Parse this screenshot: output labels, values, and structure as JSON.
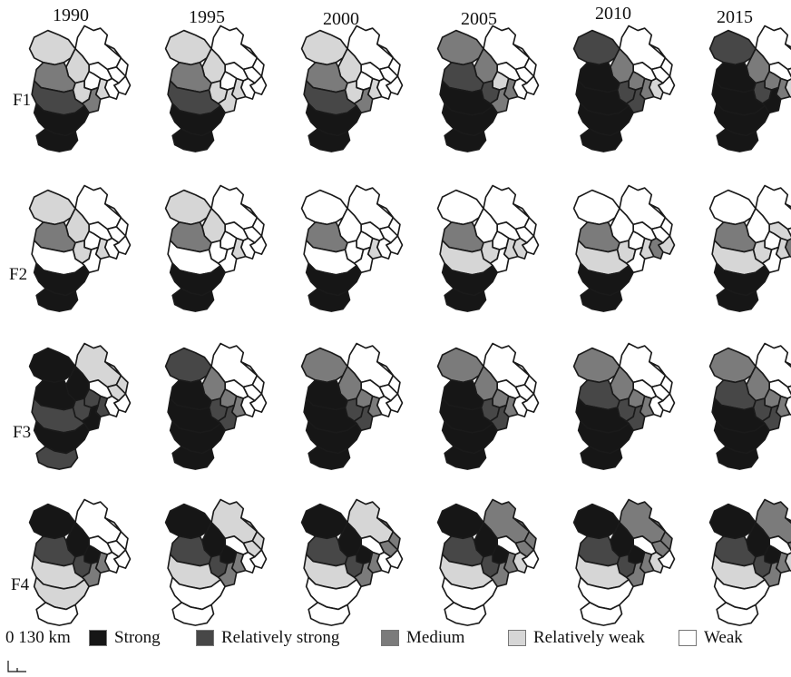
{
  "years": [
    "1990",
    "1995",
    "2000",
    "2005",
    "2010",
    "2015"
  ],
  "factors": [
    "F1",
    "F2",
    "F3",
    "F4"
  ],
  "scale": {
    "label": "0 130 km"
  },
  "legend": [
    {
      "label": "Strong",
      "color": "#161616"
    },
    {
      "label": "Relatively strong",
      "color": "#474747"
    },
    {
      "label": "Medium",
      "color": "#7b7b7b"
    },
    {
      "label": "Relatively weak",
      "color": "#d6d6d6"
    },
    {
      "label": "Weak",
      "color": "#ffffff"
    }
  ],
  "levels": [
    "Weak",
    "Relatively weak",
    "Medium",
    "Relatively strong",
    "Strong"
  ],
  "maps": [
    [
      [
        "Weak",
        "Weak",
        "Weak",
        "Weak",
        "Weak",
        "Relatively weak",
        "Relatively weak",
        "Weak",
        "Relatively weak",
        "Relatively weak",
        "Medium",
        "Medium",
        "Relatively strong",
        "Strong",
        "Strong"
      ],
      [
        "Weak",
        "Weak",
        "Weak",
        "Weak",
        "Weak",
        "Relatively weak",
        "Relatively weak",
        "Weak",
        "Relatively weak",
        "Relatively weak",
        "Medium",
        "Relatively weak",
        "Relatively strong",
        "Strong",
        "Strong"
      ],
      [
        "Weak",
        "Weak",
        "Weak",
        "Weak",
        "Weak",
        "Relatively weak",
        "Relatively weak",
        "Weak",
        "Relatively weak",
        "Relatively weak",
        "Medium",
        "Medium",
        "Relatively strong",
        "Strong",
        "Strong"
      ],
      [
        "Weak",
        "Weak",
        "Weak",
        "Weak",
        "Weak",
        "Medium",
        "Medium",
        "Relatively weak",
        "Medium",
        "Relatively strong",
        "Relatively strong",
        "Medium",
        "Strong",
        "Strong",
        "Strong"
      ],
      [
        "Weak",
        "Weak",
        "Weak",
        "Relatively weak",
        "Weak",
        "Relatively strong",
        "Medium",
        "Medium",
        "Medium",
        "Relatively strong",
        "Strong",
        "Relatively strong",
        "Strong",
        "Strong",
        "Strong"
      ],
      [
        "Weak",
        "Weak",
        "Weak",
        "Relatively weak",
        "Weak",
        "Relatively strong",
        "Medium",
        "Medium",
        "Medium",
        "Relatively strong",
        "Strong",
        "Strong",
        "Strong",
        "Strong",
        "Strong"
      ]
    ],
    [
      [
        "Weak",
        "Weak",
        "Weak",
        "Weak",
        "Weak",
        "Relatively weak",
        "Relatively weak",
        "Weak",
        "Relatively weak",
        "Relatively weak",
        "Medium",
        "Weak",
        "Weak",
        "Strong",
        "Strong"
      ],
      [
        "Weak",
        "Weak",
        "Weak",
        "Weak",
        "Weak",
        "Relatively weak",
        "Relatively weak",
        "Weak",
        "Relatively weak",
        "Weak",
        "Medium",
        "Weak",
        "Weak",
        "Strong",
        "Strong"
      ],
      [
        "Weak",
        "Weak",
        "Weak",
        "Weak",
        "Weak",
        "Weak",
        "Weak",
        "Weak",
        "Relatively weak",
        "Weak",
        "Medium",
        "Weak",
        "Weak",
        "Strong",
        "Strong"
      ],
      [
        "Weak",
        "Weak",
        "Weak",
        "Relatively weak",
        "Weak",
        "Weak",
        "Weak",
        "Weak",
        "Relatively weak",
        "Relatively weak",
        "Medium",
        "Weak",
        "Relatively weak",
        "Strong",
        "Strong"
      ],
      [
        "Weak",
        "Weak",
        "Relatively weak",
        "Medium",
        "Weak",
        "Weak",
        "Weak",
        "Weak",
        "Relatively weak",
        "Relatively weak",
        "Medium",
        "Weak",
        "Relatively weak",
        "Strong",
        "Strong"
      ],
      [
        "Weak",
        "Weak",
        "Relatively weak",
        "Medium",
        "Relatively weak",
        "Weak",
        "Weak",
        "Weak",
        "Relatively weak",
        "Relatively weak",
        "Medium",
        "Weak",
        "Relatively weak",
        "Strong",
        "Strong"
      ]
    ],
    [
      [
        "Relatively weak",
        "Relatively weak",
        "Weak",
        "Weak",
        "Weak",
        "Strong",
        "Strong",
        "Relatively strong",
        "Relatively strong",
        "Relatively strong",
        "Strong",
        "Strong",
        "Relatively strong",
        "Strong",
        "Relatively strong"
      ],
      [
        "Weak",
        "Weak",
        "Weak",
        "Weak",
        "Weak",
        "Relatively strong",
        "Medium",
        "Medium",
        "Medium",
        "Relatively strong",
        "Strong",
        "Relatively strong",
        "Strong",
        "Strong",
        "Strong"
      ],
      [
        "Weak",
        "Weak",
        "Weak",
        "Weak",
        "Weak",
        "Medium",
        "Medium",
        "Medium",
        "Medium",
        "Relatively strong",
        "Strong",
        "Relatively strong",
        "Strong",
        "Strong",
        "Strong"
      ],
      [
        "Weak",
        "Weak",
        "Weak",
        "Weak",
        "Weak",
        "Medium",
        "Medium",
        "Medium",
        "Medium",
        "Relatively strong",
        "Strong",
        "Relatively strong",
        "Strong",
        "Strong",
        "Strong"
      ],
      [
        "Weak",
        "Weak",
        "Weak",
        "Weak",
        "Weak",
        "Medium",
        "Medium",
        "Medium",
        "Medium",
        "Relatively strong",
        "Relatively strong",
        "Relatively strong",
        "Strong",
        "Strong",
        "Strong"
      ],
      [
        "Weak",
        "Weak",
        "Weak",
        "Weak",
        "Weak",
        "Medium",
        "Medium",
        "Medium",
        "Medium",
        "Relatively strong",
        "Relatively strong",
        "Relatively strong",
        "Strong",
        "Strong",
        "Strong"
      ]
    ],
    [
      [
        "Weak",
        "Weak",
        "Weak",
        "Weak",
        "Weak",
        "Strong",
        "Strong",
        "Strong",
        "Medium",
        "Relatively strong",
        "Relatively strong",
        "Medium",
        "Relatively weak",
        "Relatively weak",
        "Weak"
      ],
      [
        "Relatively weak",
        "Relatively weak",
        "Weak",
        "Weak",
        "Weak",
        "Strong",
        "Strong",
        "Strong",
        "Medium",
        "Relatively strong",
        "Relatively strong",
        "Medium",
        "Relatively weak",
        "Weak",
        "Weak"
      ],
      [
        "Relatively weak",
        "Medium",
        "Weak",
        "Weak",
        "Weak",
        "Strong",
        "Strong",
        "Strong",
        "Medium",
        "Relatively strong",
        "Relatively strong",
        "Medium",
        "Relatively weak",
        "Weak",
        "Weak"
      ],
      [
        "Medium",
        "Medium",
        "Weak",
        "Relatively weak",
        "Weak",
        "Strong",
        "Strong",
        "Strong",
        "Medium",
        "Relatively strong",
        "Relatively strong",
        "Medium",
        "Relatively weak",
        "Weak",
        "Weak"
      ],
      [
        "Medium",
        "Medium",
        "Weak",
        "Relatively weak",
        "Weak",
        "Strong",
        "Strong",
        "Strong",
        "Medium",
        "Relatively strong",
        "Relatively strong",
        "Medium",
        "Relatively weak",
        "Weak",
        "Weak"
      ],
      [
        "Medium",
        "Medium",
        "Weak",
        "Relatively weak",
        "Weak",
        "Strong",
        "Strong",
        "Strong",
        "Medium",
        "Relatively strong",
        "Relatively strong",
        "Medium",
        "Relatively weak",
        "Weak",
        "Weak"
      ]
    ]
  ]
}
